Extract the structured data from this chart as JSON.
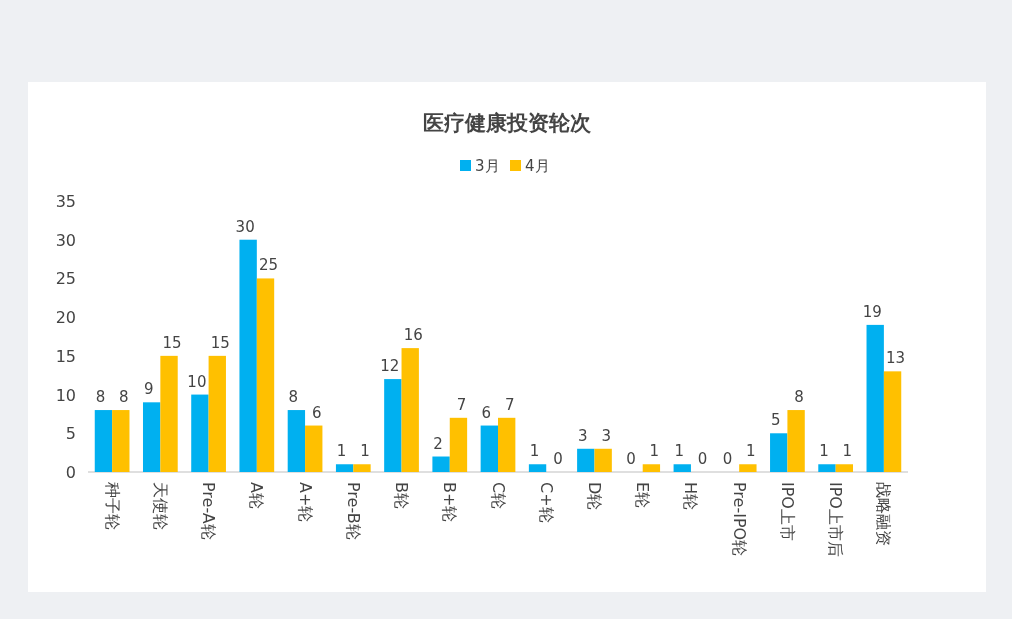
{
  "chart_data": {
    "type": "bar",
    "title": "医疗健康投资轮次",
    "categories": [
      "种子轮",
      "天使轮",
      "Pre-A轮",
      "A轮",
      "A+轮",
      "Pre-B轮",
      "B轮",
      "B+轮",
      "C轮",
      "C+轮",
      "D轮",
      "E轮",
      "H轮",
      "Pre-IPO轮",
      "IPO上市",
      "IPO上市后",
      "战略融资"
    ],
    "series": [
      {
        "name": "3月",
        "color": "#00b0f0",
        "values": [
          8,
          9,
          10,
          30,
          8,
          1,
          12,
          2,
          6,
          1,
          3,
          0,
          1,
          0,
          5,
          1,
          19
        ]
      },
      {
        "name": "4月",
        "color": "#ffc000",
        "values": [
          8,
          15,
          15,
          25,
          6,
          1,
          16,
          7,
          7,
          0,
          3,
          1,
          0,
          1,
          8,
          1,
          13
        ]
      }
    ],
    "ylim": [
      0,
      35
    ],
    "yticks": [
      0,
      5,
      10,
      15,
      20,
      25,
      30,
      35
    ],
    "data_labels": true,
    "legend": "top",
    "grid": false
  }
}
